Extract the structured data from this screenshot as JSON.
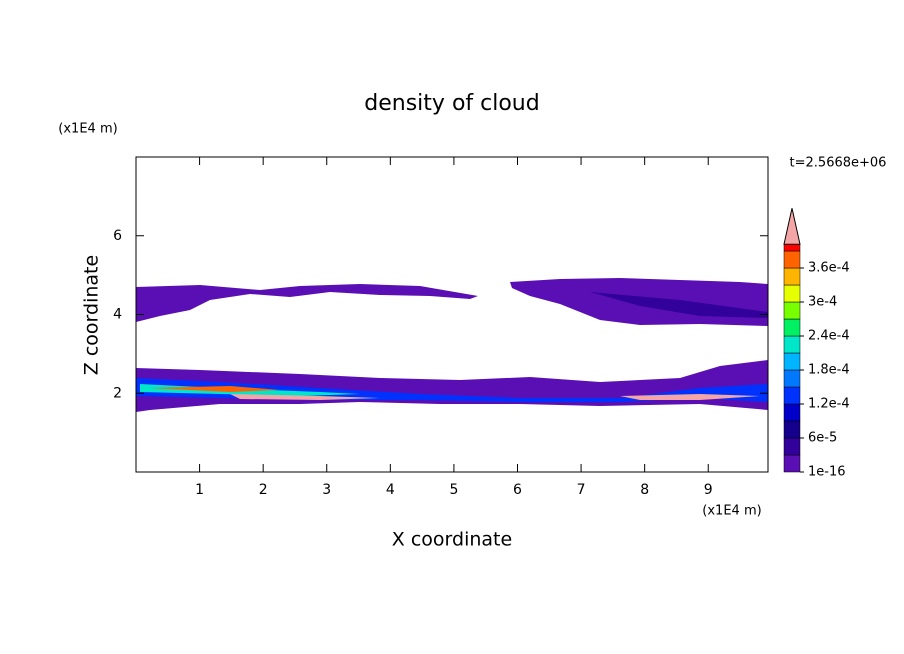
{
  "chart_data": {
    "type": "contour",
    "title": "density of cloud",
    "x_label": "X coordinate",
    "y_label": "Z coordinate",
    "x_unit": "(x1E4 m)",
    "y_unit": "(x1E4 m)",
    "annotation": "t=2.5668e+06",
    "xlim": [
      0,
      9.94
    ],
    "ylim": [
      0,
      8
    ],
    "xticks": [
      1,
      2,
      3,
      4,
      5,
      6,
      7,
      8,
      9
    ],
    "yticks": [
      2,
      4,
      6
    ],
    "colorbar": {
      "clim": [
        0,
        0.00039
      ],
      "ticks": [
        {
          "value": 1e-16,
          "label": "1e-16"
        },
        {
          "value": 6e-05,
          "label": "6e-5"
        },
        {
          "value": 0.00012,
          "label": "1.2e-4"
        },
        {
          "value": 0.00018,
          "label": "1.8e-4"
        },
        {
          "value": 0.00024,
          "label": "2.4e-4"
        },
        {
          "value": 0.0003,
          "label": "3e-4"
        },
        {
          "value": 0.00036,
          "label": "3.6e-4"
        }
      ],
      "colors": [
        "#5a0fb4",
        "#32009b",
        "#14008c",
        "#0000c8",
        "#0032ff",
        "#0078ff",
        "#00b4ff",
        "#00e6c8",
        "#00f064",
        "#78ff00",
        "#e6ff00",
        "#ffb400",
        "#ff6400",
        "#ff0000"
      ],
      "extend_color": "#f4a6a6"
    }
  }
}
